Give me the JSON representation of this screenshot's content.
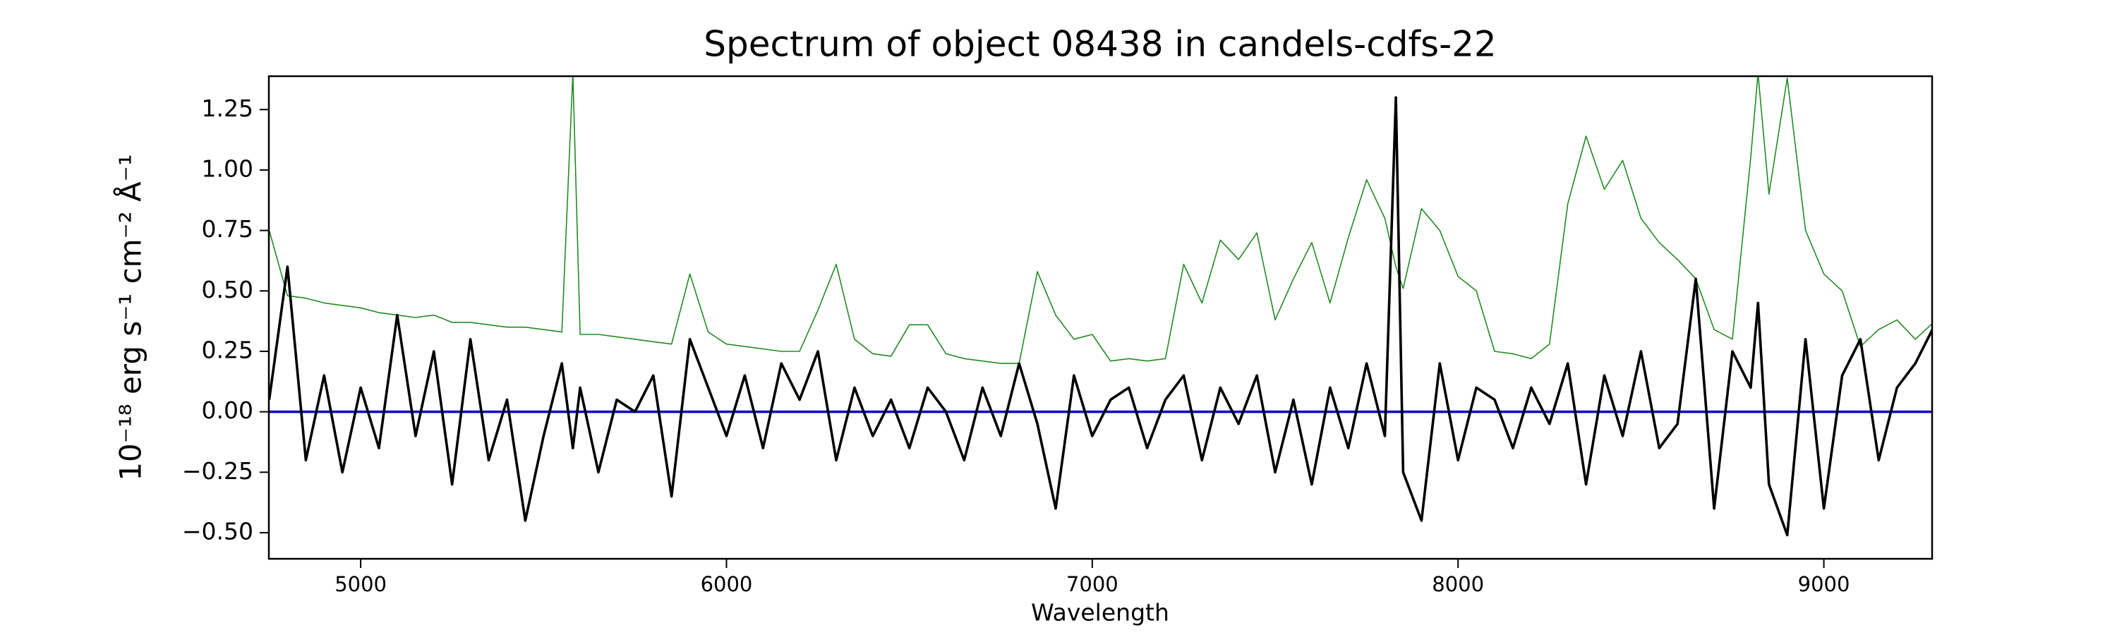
{
  "chart_data": {
    "type": "line",
    "title": "Spectrum of object 08438 in candels-cdfs-22",
    "xlabel": "Wavelength",
    "ylabel": "10⁻¹⁸ erg s⁻¹ cm⁻² Å⁻¹",
    "x": [
      4750,
      4800,
      4850,
      4900,
      4950,
      5000,
      5050,
      5100,
      5150,
      5200,
      5250,
      5300,
      5350,
      5400,
      5450,
      5500,
      5550,
      5580,
      5600,
      5650,
      5700,
      5750,
      5800,
      5850,
      5900,
      5950,
      6000,
      6050,
      6100,
      6150,
      6200,
      6250,
      6300,
      6350,
      6400,
      6450,
      6500,
      6550,
      6600,
      6650,
      6700,
      6750,
      6800,
      6850,
      6900,
      6950,
      7000,
      7050,
      7100,
      7150,
      7200,
      7250,
      7300,
      7350,
      7400,
      7450,
      7500,
      7550,
      7600,
      7650,
      7700,
      7750,
      7800,
      7830,
      7850,
      7900,
      7950,
      8000,
      8050,
      8100,
      8150,
      8200,
      8250,
      8300,
      8350,
      8400,
      8450,
      8500,
      8550,
      8600,
      8650,
      8700,
      8750,
      8800,
      8820,
      8850,
      8900,
      8950,
      9000,
      9050,
      9100,
      9150,
      9200,
      9250,
      9300
    ],
    "series": [
      {
        "color": "#228b22",
        "values": [
          0.75,
          0.48,
          0.47,
          0.45,
          0.44,
          0.43,
          0.41,
          0.4,
          0.39,
          0.4,
          0.37,
          0.37,
          0.36,
          0.35,
          0.35,
          0.34,
          0.33,
          1.4,
          0.32,
          0.32,
          0.31,
          0.3,
          0.29,
          0.28,
          0.57,
          0.33,
          0.28,
          0.27,
          0.26,
          0.25,
          0.25,
          0.42,
          0.61,
          0.3,
          0.24,
          0.23,
          0.36,
          0.36,
          0.24,
          0.22,
          0.21,
          0.2,
          0.2,
          0.58,
          0.4,
          0.3,
          0.32,
          0.21,
          0.22,
          0.21,
          0.22,
          0.61,
          0.45,
          0.71,
          0.63,
          0.74,
          0.38,
          0.55,
          0.7,
          0.45,
          0.72,
          0.96,
          0.8,
          0.6,
          0.51,
          0.84,
          0.75,
          0.56,
          0.5,
          0.25,
          0.24,
          0.22,
          0.28,
          0.86,
          1.14,
          0.92,
          1.04,
          0.8,
          0.7,
          0.63,
          0.55,
          0.34,
          0.3,
          1.05,
          1.4,
          0.9,
          1.38,
          0.75,
          0.57,
          0.5,
          0.27,
          0.34,
          0.38,
          0.3,
          0.37
        ]
      },
      {
        "color": "#000000",
        "values": [
          0.05,
          0.6,
          -0.2,
          0.15,
          -0.25,
          0.1,
          -0.15,
          0.4,
          -0.1,
          0.25,
          -0.3,
          0.3,
          -0.2,
          0.05,
          -0.45,
          -0.1,
          0.2,
          -0.15,
          0.1,
          -0.25,
          0.05,
          0.0,
          0.15,
          -0.35,
          0.3,
          0.1,
          -0.1,
          0.15,
          -0.15,
          0.2,
          0.05,
          0.25,
          -0.2,
          0.1,
          -0.1,
          0.05,
          -0.15,
          0.1,
          0.0,
          -0.2,
          0.1,
          -0.1,
          0.2,
          -0.05,
          -0.4,
          0.15,
          -0.1,
          0.05,
          0.1,
          -0.15,
          0.05,
          0.15,
          -0.2,
          0.1,
          -0.05,
          0.15,
          -0.25,
          0.05,
          -0.3,
          0.1,
          -0.15,
          0.2,
          -0.1,
          1.3,
          -0.25,
          -0.45,
          0.2,
          -0.2,
          0.1,
          0.05,
          -0.15,
          0.1,
          -0.05,
          0.2,
          -0.3,
          0.15,
          -0.1,
          0.25,
          -0.15,
          -0.05,
          0.55,
          -0.4,
          0.25,
          0.1,
          0.45,
          -0.3,
          -0.51,
          0.3,
          -0.4,
          0.15,
          0.3,
          -0.2,
          0.1,
          0.2,
          0.35
        ]
      }
    ],
    "reference_line": {
      "value": 0,
      "color": "#0000cc"
    },
    "xlim": [
      4749,
      9296
    ],
    "ylim": [
      -0.608,
      1.388
    ],
    "xticks": [
      5000,
      6000,
      7000,
      8000,
      9000
    ],
    "yticks": [
      {
        "value": -0.5,
        "label": "−0.50"
      },
      {
        "value": -0.25,
        "label": "−0.25"
      },
      {
        "value": 0,
        "label": "0.00"
      },
      0.25,
      {
        "value": 0.5,
        "label": "0.50"
      },
      0.75,
      {
        "value": 1,
        "label": "1.00"
      },
      1.25
    ]
  }
}
